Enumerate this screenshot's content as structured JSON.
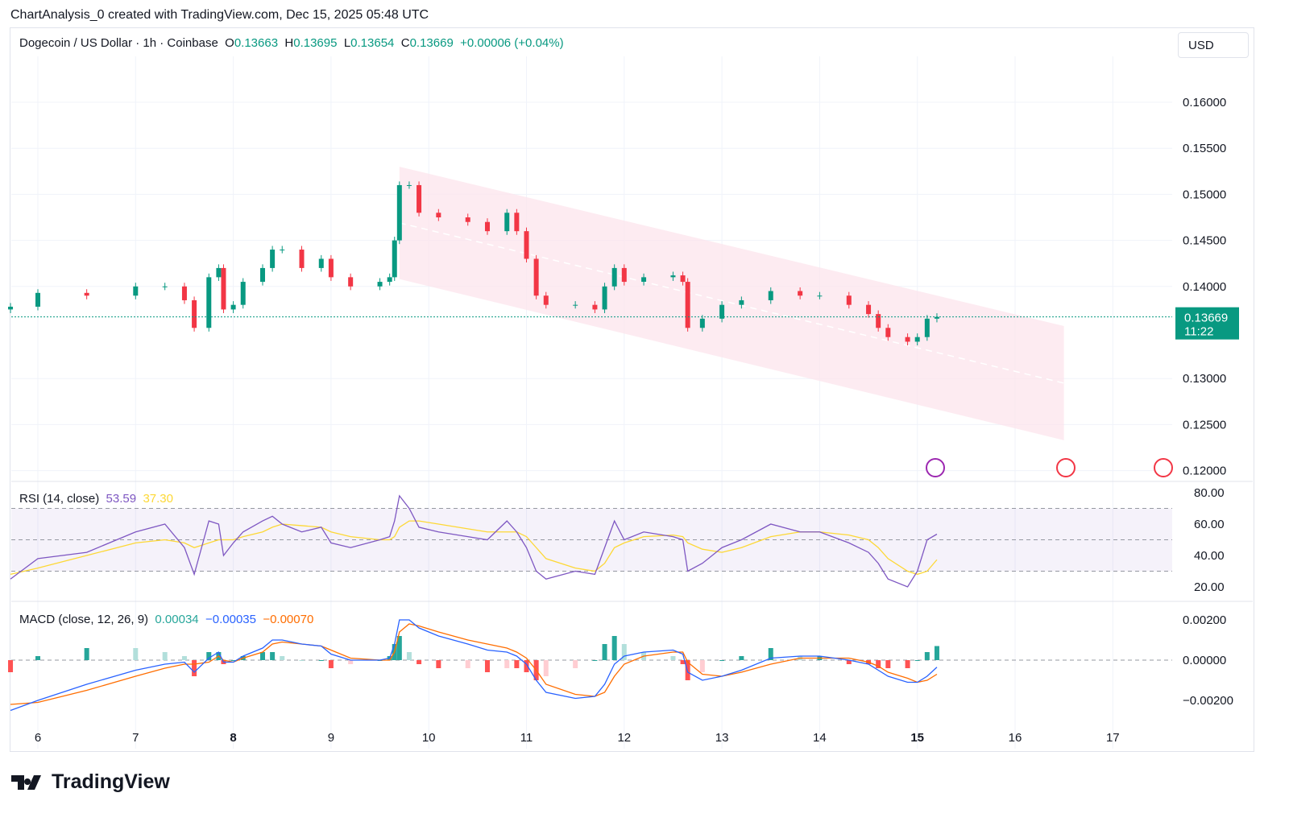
{
  "header": {
    "attribution": "ChartAnalysis_0 created with TradingView.com, Dec 15, 2025 05:48 UTC"
  },
  "legend": {
    "symbol": "Dogecoin / US Dollar · 1h · Coinbase",
    "o_label": "O",
    "o": "0.13663",
    "h_label": "H",
    "h": "0.13695",
    "l_label": "L",
    "l": "0.13654",
    "c_label": "C",
    "c": "0.13669",
    "change": "+0.00006 (+0.04%)"
  },
  "currency": "USD",
  "last_price": {
    "price": "0.13669",
    "countdown": "11:22"
  },
  "rsi": {
    "label": "RSI (14, close)",
    "value": "53.59",
    "ma": "37.30"
  },
  "macd": {
    "label": "MACD (close, 12, 26, 9)",
    "hist": "0.00034",
    "macd": "−0.00035",
    "signal": "−0.00070"
  },
  "brand": "TradingView",
  "colors": {
    "up": "#089981",
    "down": "#f23645",
    "rsi": "#7e57c2",
    "rsi_ma": "#fdd835",
    "macd": "#2962ff",
    "signal": "#ff6d00",
    "channel": "#fce4ec"
  },
  "chart_data": {
    "type": "candlestick",
    "price_axis": {
      "ticks": [
        "0.16000",
        "0.15500",
        "0.15000",
        "0.14500",
        "0.14000",
        "0.13000",
        "0.12500",
        "0.12000"
      ],
      "range": [
        0.1195,
        0.1637
      ]
    },
    "x_ticks": [
      "6",
      "7",
      "8",
      "9",
      "10",
      "11",
      "12",
      "13",
      "14",
      "15",
      "16",
      "17"
    ],
    "x_tick_days": [
      6,
      7,
      8,
      9,
      10,
      11,
      12,
      13,
      14,
      15,
      16,
      17
    ],
    "times": [
      5.72,
      6.0,
      6.5,
      7.0,
      7.3,
      7.5,
      7.6,
      7.75,
      7.85,
      7.9,
      8.0,
      8.1,
      8.3,
      8.4,
      8.5,
      8.7,
      8.9,
      9.0,
      9.2,
      9.5,
      9.6,
      9.65,
      9.7,
      9.8,
      9.9,
      10.1,
      10.4,
      10.6,
      10.8,
      10.9,
      11.0,
      11.1,
      11.2,
      11.5,
      11.7,
      11.8,
      11.9,
      12.0,
      12.2,
      12.5,
      12.6,
      12.65,
      12.8,
      13.0,
      13.2,
      13.5,
      13.8,
      14.0,
      14.3,
      14.5,
      14.6,
      14.7,
      14.9,
      15.0,
      15.1,
      15.2
    ],
    "close": [
      0.1378,
      0.1393,
      0.139,
      0.14,
      0.14,
      0.1385,
      0.1355,
      0.141,
      0.142,
      0.1375,
      0.138,
      0.1405,
      0.142,
      0.144,
      0.144,
      0.142,
      0.143,
      0.141,
      0.14,
      0.1405,
      0.141,
      0.145,
      0.151,
      0.151,
      0.148,
      0.1475,
      0.147,
      0.146,
      0.148,
      0.146,
      0.143,
      0.139,
      0.138,
      0.138,
      0.1375,
      0.14,
      0.142,
      0.1405,
      0.141,
      0.1412,
      0.1405,
      0.1355,
      0.1365,
      0.138,
      0.1385,
      0.1395,
      0.139,
      0.139,
      0.138,
      0.137,
      0.1355,
      0.1345,
      0.134,
      0.1345,
      0.1365,
      0.13669
    ],
    "channel": {
      "upper": [
        [
          9.7,
          0.153
        ],
        [
          16.5,
          0.1357
        ]
      ],
      "lower": [
        [
          9.7,
          0.1408
        ],
        [
          16.5,
          0.1233
        ]
      ]
    },
    "rsi": {
      "ticks": [
        "80.00",
        "60.00",
        "40.00",
        "20.00"
      ],
      "levels": [
        70,
        50,
        30
      ],
      "range": [
        15,
        82
      ],
      "values": [
        25,
        38,
        42,
        55,
        60,
        45,
        28,
        62,
        60,
        40,
        48,
        55,
        62,
        65,
        60,
        55,
        58,
        48,
        45,
        50,
        52,
        62,
        78,
        70,
        58,
        55,
        52,
        50,
        62,
        55,
        45,
        30,
        25,
        30,
        28,
        45,
        62,
        50,
        55,
        52,
        50,
        30,
        35,
        45,
        50,
        60,
        55,
        55,
        48,
        42,
        35,
        25,
        20,
        30,
        50,
        53.59
      ],
      "ma": [
        28,
        32,
        40,
        48,
        50,
        48,
        45,
        48,
        50,
        50,
        50,
        52,
        55,
        58,
        60,
        59,
        58,
        55,
        52,
        50,
        50,
        52,
        58,
        62,
        62,
        60,
        57,
        55,
        55,
        55,
        52,
        45,
        38,
        32,
        30,
        35,
        45,
        48,
        52,
        53,
        52,
        48,
        44,
        42,
        45,
        52,
        55,
        55,
        53,
        50,
        45,
        38,
        30,
        28,
        30,
        37.3
      ]
    },
    "macd": {
      "ticks": [
        "0.00200",
        "0.00000",
        "−0.00200"
      ],
      "range": [
        -0.0028,
        0.0024
      ],
      "macd": [
        -0.0025,
        -0.002,
        -0.0012,
        -0.0005,
        -0.0002,
        -0.0001,
        -0.0006,
        0.0001,
        0.0004,
        -0.0001,
        -0.0001,
        0.0002,
        0.0006,
        0.001,
        0.001,
        0.0008,
        0.0007,
        0.0003,
        0.0,
        0.0,
        0.0001,
        0.0008,
        0.002,
        0.002,
        0.0016,
        0.0012,
        0.0008,
        0.0005,
        0.0004,
        0.0002,
        -0.0002,
        -0.001,
        -0.0016,
        -0.0019,
        -0.0018,
        -0.0012,
        -0.0002,
        0.0002,
        0.0004,
        0.0005,
        0.0003,
        -0.0006,
        -0.001,
        -0.0008,
        -0.0005,
        0.0001,
        0.0002,
        0.0002,
        0.0,
        -0.0002,
        -0.0005,
        -0.0008,
        -0.0011,
        -0.0011,
        -0.0008,
        -0.00035
      ],
      "signal": [
        -0.0022,
        -0.0021,
        -0.0015,
        -0.0008,
        -0.0004,
        -0.0002,
        -0.0002,
        -0.0001,
        0.0002,
        0.0,
        -0.0001,
        0.0001,
        0.0004,
        0.0008,
        0.0009,
        0.0008,
        0.0007,
        0.0005,
        0.0001,
        0.0,
        0.0,
        0.0004,
        0.0014,
        0.0018,
        0.0017,
        0.0014,
        0.001,
        0.0008,
        0.0006,
        0.0004,
        0.0001,
        -0.0005,
        -0.0012,
        -0.0017,
        -0.0018,
        -0.0016,
        -0.0008,
        -0.0002,
        0.0002,
        0.0004,
        0.0004,
        -0.0001,
        -0.0007,
        -0.0008,
        -0.0006,
        -0.0002,
        0.0001,
        0.0001,
        0.0001,
        -0.0001,
        -0.0003,
        -0.0006,
        -0.0009,
        -0.0011,
        -0.001,
        -0.0007
      ]
    }
  }
}
